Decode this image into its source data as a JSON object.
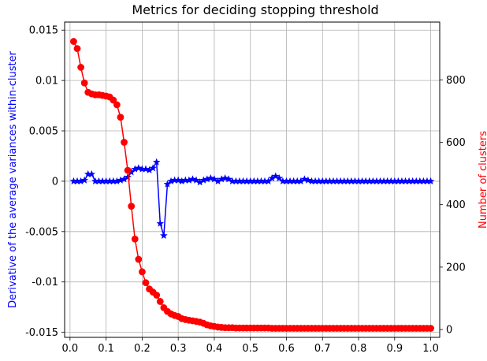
{
  "chart_data": {
    "type": "line",
    "title": "Metrics for deciding stopping threshold",
    "xlabel": "",
    "ylabel_left": "Derivative of the average variances within-cluster",
    "ylabel_right": "Number of clusters",
    "xlim": [
      -0.015,
      1.025
    ],
    "ylim_left": [
      -0.0155,
      0.0158
    ],
    "ylim_right": [
      -25,
      985
    ],
    "x_ticks": [
      0.0,
      0.1,
      0.2,
      0.3,
      0.4,
      0.5,
      0.6,
      0.7,
      0.8,
      0.9,
      1.0
    ],
    "x_tick_labels": [
      "0.0",
      "0.1",
      "0.2",
      "0.3",
      "0.4",
      "0.5",
      "0.6",
      "0.7",
      "0.8",
      "0.9",
      "1.0"
    ],
    "y_left_ticks": [
      0.015,
      0.01,
      0.005,
      0,
      -0.005,
      -0.01,
      -0.015
    ],
    "y_left_tick_labels": [
      "0.015",
      "0.01",
      "0.005",
      "0",
      "-0.005",
      "-0.01",
      "-0.015"
    ],
    "y_right_ticks": [
      0,
      200,
      400,
      600,
      800
    ],
    "y_right_tick_labels": [
      "0",
      "200",
      "400",
      "600",
      "800"
    ],
    "grid": true,
    "x": [
      0.01,
      0.02,
      0.03,
      0.04,
      0.05,
      0.06,
      0.07,
      0.08,
      0.09,
      0.1,
      0.11,
      0.12,
      0.13,
      0.14,
      0.15,
      0.16,
      0.17,
      0.18,
      0.19,
      0.2,
      0.21,
      0.22,
      0.23,
      0.24,
      0.25,
      0.26,
      0.27,
      0.28,
      0.29,
      0.3,
      0.31,
      0.32,
      0.33,
      0.34,
      0.35,
      0.36,
      0.37,
      0.38,
      0.39,
      0.4,
      0.41,
      0.42,
      0.43,
      0.44,
      0.45,
      0.46,
      0.47,
      0.48,
      0.49,
      0.5,
      0.51,
      0.52,
      0.53,
      0.54,
      0.55,
      0.56,
      0.57,
      0.58,
      0.59,
      0.6,
      0.61,
      0.62,
      0.63,
      0.64,
      0.65,
      0.66,
      0.67,
      0.68,
      0.69,
      0.7,
      0.71,
      0.72,
      0.73,
      0.74,
      0.75,
      0.76,
      0.77,
      0.78,
      0.79,
      0.8,
      0.81,
      0.82,
      0.83,
      0.84,
      0.85,
      0.86,
      0.87,
      0.88,
      0.89,
      0.9,
      0.91,
      0.92,
      0.93,
      0.94,
      0.95,
      0.96,
      0.97,
      0.98,
      0.99,
      1.0
    ],
    "series": [
      {
        "axis": "left",
        "color": "#0000ff",
        "marker": "star",
        "values": [
          0,
          0,
          0,
          0.0001,
          0.0007,
          0.0007,
          0,
          0,
          0,
          0,
          0,
          0,
          0,
          0.0001,
          0.0002,
          0.0004,
          0.0009,
          0.0012,
          0.0013,
          0.0012,
          0.0012,
          0.0011,
          0.0013,
          0.0019,
          -0.0042,
          -0.0054,
          -0.0003,
          0,
          0.0001,
          0.0001,
          0,
          0.0001,
          0.0001,
          0.0002,
          0.0001,
          -0.0001,
          0.0001,
          0.0002,
          0.0003,
          0.0002,
          0,
          0.0002,
          0.0003,
          0.0002,
          0,
          0,
          0,
          0,
          0,
          0,
          0,
          0,
          0,
          0,
          0,
          0.0003,
          0.0005,
          0.0003,
          0,
          0,
          0,
          0,
          0,
          0,
          0.0002,
          0.0001,
          0,
          0,
          0,
          0,
          0,
          0,
          0,
          0,
          0,
          0,
          0,
          0,
          0,
          0,
          0,
          0,
          0,
          0,
          0,
          0,
          0,
          0,
          0,
          0,
          0,
          0,
          0,
          0,
          0,
          0,
          0,
          0,
          0,
          0
        ]
      },
      {
        "axis": "right",
        "color": "#ff0000",
        "marker": "circle",
        "values": [
          923,
          900,
          840,
          790,
          760,
          755,
          752,
          752,
          750,
          748,
          745,
          735,
          720,
          680,
          600,
          510,
          395,
          290,
          225,
          185,
          150,
          130,
          120,
          110,
          90,
          70,
          58,
          50,
          45,
          42,
          35,
          32,
          30,
          28,
          26,
          24,
          20,
          15,
          12,
          10,
          8,
          7,
          6,
          6,
          6,
          5,
          5,
          5,
          5,
          5,
          5,
          5,
          5,
          5,
          5,
          4,
          4,
          4,
          4,
          4,
          4,
          4,
          4,
          4,
          4,
          4,
          4,
          4,
          4,
          4,
          4,
          4,
          4,
          4,
          4,
          4,
          4,
          4,
          4,
          4,
          4,
          4,
          4,
          4,
          4,
          4,
          4,
          4,
          4,
          4,
          4,
          4,
          4,
          4,
          4,
          4,
          4,
          4,
          4,
          4
        ]
      }
    ]
  }
}
